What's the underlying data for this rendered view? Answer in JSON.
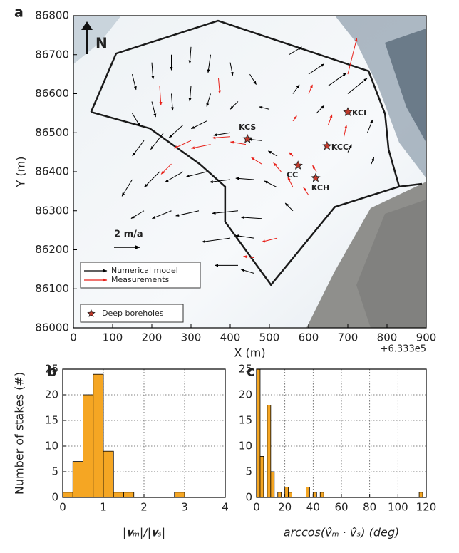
{
  "chart_data": [
    {
      "type": "quiver",
      "panel": "a",
      "xlabel": "X (m)",
      "ylabel": "Y (m)",
      "x_offset_label": "+6.333e5",
      "north_label": "N",
      "xlim": [
        0,
        900
      ],
      "ylim": [
        86000,
        86800
      ],
      "xticks": [
        0,
        100,
        200,
        300,
        400,
        500,
        600,
        700,
        800,
        900
      ],
      "yticks": [
        86000,
        86100,
        86200,
        86300,
        86400,
        86500,
        86600,
        86700,
        86800
      ],
      "scale_arrow": {
        "value": 2,
        "label": "2 m/a"
      },
      "outlines": [
        {
          "x": [
            45,
            109,
            369,
            753,
            795,
            804,
            831,
            667,
            504,
            387,
            387,
            322,
            195,
            45
          ],
          "y": [
            86553,
            86703,
            86787,
            86658,
            86548,
            86457,
            86362,
            86310,
            86110,
            86272,
            86362,
            86420,
            86511,
            86553
          ]
        },
        {
          "x": [
            831,
            889
          ],
          "y": [
            86362,
            86369
          ]
        }
      ],
      "series": [
        {
          "name": "Numerical model",
          "color": "#000000",
          "x": [
            150,
            200,
            250,
            300,
            350,
            400,
            450,
            550,
            600,
            650,
            700,
            150,
            200,
            250,
            300,
            350,
            420,
            500,
            560,
            620,
            750,
            180,
            230,
            280,
            340,
            400,
            480,
            520,
            700,
            760,
            150,
            220,
            280,
            340,
            400,
            460,
            520,
            180,
            250,
            320,
            420,
            480,
            560,
            400,
            460,
            420,
            460
          ],
          "y": [
            86650,
            86680,
            86700,
            86720,
            86700,
            86680,
            86650,
            86700,
            86650,
            86620,
            86600,
            86550,
            86580,
            86600,
            86620,
            86600,
            86580,
            86560,
            86600,
            86550,
            86500,
            86480,
            86500,
            86520,
            86530,
            86500,
            86480,
            86440,
            86450,
            86420,
            86380,
            86400,
            86400,
            86400,
            86380,
            86380,
            86360,
            86300,
            86300,
            86300,
            86300,
            86280,
            86300,
            86230,
            86230,
            86160,
            86140
          ],
          "u": [
            0.3,
            0.1,
            0,
            -0.1,
            -0.2,
            0.2,
            0.5,
            1.0,
            1.2,
            1.4,
            1.5,
            0.6,
            0.3,
            0.1,
            -0.1,
            -0.3,
            -0.6,
            -0.8,
            0.5,
            0.6,
            0.4,
            -0.9,
            -1.0,
            -1.1,
            -1.2,
            -1.3,
            -1.0,
            -0.7,
            0.3,
            0.2,
            -0.8,
            -1.2,
            -1.4,
            -1.6,
            -1.6,
            -1.4,
            -1.0,
            -1.0,
            -1.5,
            -1.8,
            -2.0,
            -1.6,
            -0.6,
            -2.2,
            -1.4,
            -1.8,
            -1.0
          ],
          "v": [
            -1.2,
            -1.3,
            -1.2,
            -1.3,
            -1.4,
            -1.0,
            -0.8,
            0.6,
            0.8,
            1.0,
            1.2,
            -1.0,
            -1.2,
            -1.3,
            -1.2,
            -1.0,
            -0.6,
            0.2,
            0.7,
            0.6,
            1.0,
            -1.2,
            -1.3,
            -1.0,
            -0.6,
            -0.2,
            0.1,
            0.4,
            0.6,
            0.5,
            -1.3,
            -1.2,
            -0.8,
            -0.4,
            -0.2,
            0.1,
            0.5,
            -0.6,
            -0.6,
            -0.4,
            -0.2,
            0.1,
            0.6,
            -0.3,
            0.2,
            0.0,
            0.3
          ]
        },
        {
          "name": "Measurements",
          "color": "#e8221b",
          "x": [
            220,
            370,
            300,
            350,
            400,
            440,
            480,
            530,
            560,
            600,
            620,
            600,
            650,
            690,
            700,
            560,
            520,
            460,
            250,
            560
          ],
          "y": [
            86620,
            86640,
            86480,
            86470,
            86490,
            86470,
            86420,
            86400,
            86360,
            86340,
            86400,
            86600,
            86520,
            86490,
            86650,
            86530,
            86230,
            86180,
            86420,
            86440
          ],
          "u": [
            0.1,
            0.1,
            -1.3,
            -1.5,
            -1.4,
            -1.2,
            -0.8,
            -0.6,
            -0.4,
            -0.4,
            -0.3,
            0.3,
            0.3,
            0.2,
            0.7,
            0.3,
            -1.2,
            -0.8,
            -0.8,
            -0.3
          ],
          "v": [
            -1.5,
            -1.2,
            -0.6,
            -0.3,
            -0.1,
            0.2,
            0.5,
            0.7,
            0.8,
            0.6,
            0.5,
            0.7,
            0.8,
            0.9,
            2.8,
            0.4,
            -0.3,
            0.1,
            -0.8,
            0.3
          ]
        }
      ],
      "boreholes": {
        "name": "Deep boreholes",
        "color": "#c0392b",
        "x": [
          444,
          573,
          618,
          647,
          700
        ],
        "y": [
          86484,
          86416,
          86384,
          86466,
          86553
        ],
        "labels": [
          "KCS",
          "CC",
          "KCH",
          "KCC",
          "KCI"
        ]
      }
    },
    {
      "type": "histogram",
      "panel": "b",
      "xlabel": "|𝐯ₘ|/|𝐯ₛ|",
      "ylabel": "Number of stakes (#)",
      "color": "#f5a623",
      "grid": true,
      "xlim": [
        0,
        4
      ],
      "ylim": [
        0,
        25
      ],
      "xticks": [
        0,
        1,
        2,
        3,
        4
      ],
      "yticks": [
        0,
        5,
        10,
        15,
        20,
        25
      ],
      "bins": [
        0,
        0.25,
        0.5,
        0.75,
        1.0,
        1.25,
        1.5,
        1.75,
        2.0,
        2.25,
        2.5,
        2.75,
        3.0
      ],
      "counts": [
        1,
        7,
        20,
        24,
        9,
        1,
        1,
        0,
        0,
        0,
        0,
        1
      ]
    },
    {
      "type": "histogram",
      "panel": "c",
      "xlabel": "arccos(v̂ₘ · v̂ₛ) (deg)",
      "color": "#f5a623",
      "grid": true,
      "xlim": [
        0,
        120
      ],
      "ylim": [
        0,
        25
      ],
      "xticks": [
        0,
        20,
        40,
        60,
        80,
        100,
        120
      ],
      "yticks": [
        0,
        5,
        10,
        15,
        20,
        25
      ],
      "bins": [
        0,
        2.5,
        5,
        7.5,
        10,
        12.5,
        15,
        17.5,
        20,
        22.5,
        25,
        27.5,
        30,
        32.5,
        35,
        37.5,
        40,
        42.5,
        45,
        47.5,
        50,
        52.5,
        55,
        57.5,
        60,
        62.5,
        65,
        67.5,
        70,
        72.5,
        75,
        77.5,
        80,
        82.5,
        85,
        87.5,
        90,
        92.5,
        95,
        97.5,
        100,
        102.5,
        105,
        107.5,
        110,
        112.5,
        115,
        117.5
      ],
      "counts": [
        25,
        8,
        0,
        18,
        5,
        0,
        1,
        0,
        2,
        1,
        0,
        0,
        0,
        0,
        2,
        0,
        1,
        0,
        1,
        0,
        0,
        0,
        0,
        0,
        0,
        0,
        0,
        0,
        0,
        0,
        0,
        0,
        0,
        0,
        0,
        0,
        0,
        0,
        0,
        0,
        0,
        0,
        0,
        0,
        0,
        0,
        1
      ]
    }
  ]
}
